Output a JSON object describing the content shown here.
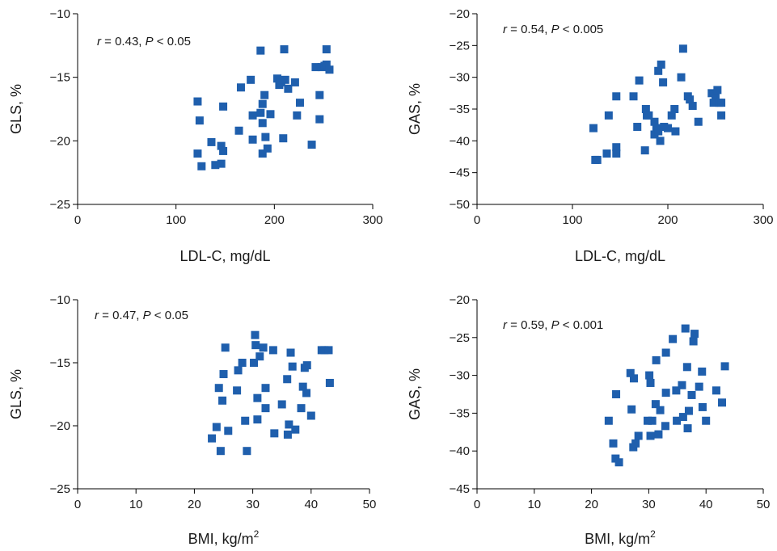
{
  "colors": {
    "marker": "#1f5fad",
    "axis": "#000000"
  },
  "chart_data": [
    {
      "type": "scatter",
      "xlabel": "LDL-C, mg/dL",
      "ylabel": "GLS, %",
      "annotation": {
        "r_symbol": "r",
        "r_text": " = 0.43, ",
        "p_symbol": "P",
        "p_text": " < 0.05"
      },
      "xlim": [
        0,
        300
      ],
      "ylim": [
        -25,
        -10
      ],
      "xticks": [
        0,
        100,
        200,
        300
      ],
      "yticks": [
        -25,
        -20,
        -15,
        -10
      ],
      "xtick_labels": [
        "0",
        "100",
        "200",
        "300"
      ],
      "ytick_labels": [
        "−25",
        "−20",
        "−15",
        "−10"
      ],
      "points": [
        [
          122,
          -16.9
        ],
        [
          124,
          -18.4
        ],
        [
          122,
          -21.0
        ],
        [
          126,
          -22.0
        ],
        [
          136,
          -20.1
        ],
        [
          140,
          -21.9
        ],
        [
          146,
          -21.8
        ],
        [
          146,
          -20.4
        ],
        [
          148,
          -20.8
        ],
        [
          148,
          -17.3
        ],
        [
          164,
          -19.2
        ],
        [
          166,
          -15.8
        ],
        [
          176,
          -15.2
        ],
        [
          178,
          -18.0
        ],
        [
          178,
          -19.9
        ],
        [
          186,
          -12.9
        ],
        [
          186,
          -17.8
        ],
        [
          188,
          -18.6
        ],
        [
          188,
          -21.0
        ],
        [
          188,
          -17.1
        ],
        [
          190,
          -16.4
        ],
        [
          191,
          -19.7
        ],
        [
          193,
          -20.6
        ],
        [
          196,
          -17.9
        ],
        [
          203,
          -15.1
        ],
        [
          205,
          -15.6
        ],
        [
          207,
          -15.4
        ],
        [
          209,
          -19.8
        ],
        [
          210,
          -12.8
        ],
        [
          211,
          -15.2
        ],
        [
          214,
          -15.9
        ],
        [
          221,
          -15.4
        ],
        [
          223,
          -18.0
        ],
        [
          226,
          -17.0
        ],
        [
          238,
          -20.3
        ],
        [
          242,
          -14.2
        ],
        [
          246,
          -16.4
        ],
        [
          246,
          -18.3
        ],
        [
          248,
          -14.2
        ],
        [
          251,
          -14.1
        ],
        [
          253,
          -12.8
        ],
        [
          253,
          -14.0
        ],
        [
          256,
          -14.4
        ]
      ]
    },
    {
      "type": "scatter",
      "xlabel": "LDL-C, mg/dL",
      "ylabel": "GAS, %",
      "annotation": {
        "r_symbol": "r",
        "r_text": " = 0.54, ",
        "p_symbol": "P",
        "p_text": " < 0.005"
      },
      "xlim": [
        0,
        300
      ],
      "ylim": [
        -50,
        -20
      ],
      "xticks": [
        0,
        100,
        200,
        300
      ],
      "yticks": [
        -50,
        -45,
        -40,
        -35,
        -30,
        -25,
        -20
      ],
      "xtick_labels": [
        "0",
        "100",
        "200",
        "300"
      ],
      "ytick_labels": [
        "−50",
        "−45",
        "−40",
        "−35",
        "−30",
        "−25",
        "−20"
      ],
      "points": [
        [
          122,
          -38.0
        ],
        [
          124,
          -43.0
        ],
        [
          126,
          -43.0
        ],
        [
          136,
          -42.0
        ],
        [
          138,
          -36.0
        ],
        [
          146,
          -33.0
        ],
        [
          146,
          -41.0
        ],
        [
          146,
          -42.0
        ],
        [
          164,
          -33.0
        ],
        [
          168,
          -37.8
        ],
        [
          170,
          -30.5
        ],
        [
          176,
          -41.5
        ],
        [
          177,
          -35.0
        ],
        [
          178,
          -36.0
        ],
        [
          180,
          -36.0
        ],
        [
          186,
          -39.0
        ],
        [
          186,
          -37.0
        ],
        [
          188,
          -38.0
        ],
        [
          190,
          -38.5
        ],
        [
          190,
          -29.0
        ],
        [
          192,
          -40.0
        ],
        [
          193,
          -28.0
        ],
        [
          195,
          -30.8
        ],
        [
          196,
          -37.8
        ],
        [
          200,
          -38.0
        ],
        [
          204,
          -36.0
        ],
        [
          207,
          -35.0
        ],
        [
          208,
          -38.5
        ],
        [
          214,
          -30.0
        ],
        [
          216,
          -25.5
        ],
        [
          221,
          -33.0
        ],
        [
          223,
          -33.5
        ],
        [
          226,
          -34.5
        ],
        [
          232,
          -37.0
        ],
        [
          246,
          -32.5
        ],
        [
          248,
          -34.0
        ],
        [
          250,
          -33.0
        ],
        [
          252,
          -32.0
        ],
        [
          254,
          -34.0
        ],
        [
          256,
          -34.0
        ],
        [
          256,
          -36.0
        ]
      ]
    },
    {
      "type": "scatter",
      "xlabel": "BMI, kg/m",
      "xlabel_sup": "2",
      "ylabel": "GLS, %",
      "annotation": {
        "r_symbol": "r",
        "r_text": " = 0.47, ",
        "p_symbol": "P",
        "p_text": " < 0.05"
      },
      "xlim": [
        0,
        50
      ],
      "ylim": [
        -25,
        -10
      ],
      "xticks": [
        0,
        10,
        20,
        30,
        40,
        50
      ],
      "yticks": [
        -25,
        -20,
        -15,
        -10
      ],
      "xtick_labels": [
        "0",
        "10",
        "20",
        "30",
        "40",
        "50"
      ],
      "ytick_labels": [
        "−25",
        "−20",
        "−15",
        "−10"
      ],
      "points": [
        [
          23.0,
          -21.0
        ],
        [
          23.8,
          -20.1
        ],
        [
          24.2,
          -17.0
        ],
        [
          24.5,
          -22.0
        ],
        [
          24.8,
          -18.0
        ],
        [
          25.0,
          -15.9
        ],
        [
          25.3,
          -13.8
        ],
        [
          25.8,
          -20.4
        ],
        [
          27.3,
          -17.2
        ],
        [
          27.5,
          -15.6
        ],
        [
          28.2,
          -15.0
        ],
        [
          28.7,
          -19.6
        ],
        [
          29.0,
          -22.0
        ],
        [
          30.2,
          -15.0
        ],
        [
          30.4,
          -12.8
        ],
        [
          30.5,
          -13.6
        ],
        [
          30.8,
          -19.5
        ],
        [
          30.8,
          -17.8
        ],
        [
          31.2,
          -14.5
        ],
        [
          31.8,
          -13.8
        ],
        [
          32.2,
          -18.6
        ],
        [
          32.2,
          -17.0
        ],
        [
          33.5,
          -14.0
        ],
        [
          33.7,
          -20.6
        ],
        [
          35.0,
          -18.3
        ],
        [
          35.9,
          -16.3
        ],
        [
          36.0,
          -20.7
        ],
        [
          36.2,
          -19.9
        ],
        [
          36.5,
          -14.2
        ],
        [
          36.8,
          -15.3
        ],
        [
          37.3,
          -20.3
        ],
        [
          38.3,
          -18.6
        ],
        [
          38.6,
          -16.9
        ],
        [
          38.9,
          -15.4
        ],
        [
          39.2,
          -17.4
        ],
        [
          39.3,
          -15.2
        ],
        [
          40.0,
          -19.2
        ],
        [
          41.8,
          -14.0
        ],
        [
          42.3,
          -14.0
        ],
        [
          43.0,
          -14.0
        ],
        [
          43.2,
          -16.6
        ]
      ]
    },
    {
      "type": "scatter",
      "xlabel": "BMI, kg/m",
      "xlabel_sup": "2",
      "ylabel": "GAS, %",
      "annotation": {
        "r_symbol": "r",
        "r_text": " = 0.59, ",
        "p_symbol": "P",
        "p_text": " < 0.001"
      },
      "xlim": [
        0,
        50
      ],
      "ylim": [
        -45,
        -20
      ],
      "xticks": [
        0,
        10,
        20,
        30,
        40,
        50
      ],
      "yticks": [
        -45,
        -40,
        -35,
        -30,
        -25,
        -20
      ],
      "xtick_labels": [
        "0",
        "10",
        "20",
        "30",
        "40",
        "50"
      ],
      "ytick_labels": [
        "−45",
        "−40",
        "−35",
        "−30",
        "−25",
        "−20"
      ],
      "points": [
        [
          23.0,
          -36.0
        ],
        [
          23.8,
          -39.0
        ],
        [
          24.2,
          -41.0
        ],
        [
          24.3,
          -32.5
        ],
        [
          24.8,
          -41.5
        ],
        [
          26.8,
          -29.7
        ],
        [
          27.0,
          -34.5
        ],
        [
          27.3,
          -39.5
        ],
        [
          27.4,
          -30.4
        ],
        [
          27.7,
          -39.0
        ],
        [
          28.2,
          -38.0
        ],
        [
          29.8,
          -36.0
        ],
        [
          30.1,
          -30.0
        ],
        [
          30.3,
          -31.0
        ],
        [
          30.3,
          -38.0
        ],
        [
          30.6,
          -36.0
        ],
        [
          31.2,
          -33.8
        ],
        [
          31.3,
          -28.0
        ],
        [
          31.7,
          -37.8
        ],
        [
          32.0,
          -34.6
        ],
        [
          32.9,
          -36.7
        ],
        [
          33.0,
          -27.0
        ],
        [
          33.0,
          -32.3
        ],
        [
          34.2,
          -25.2
        ],
        [
          34.8,
          -32.0
        ],
        [
          34.9,
          -36.0
        ],
        [
          35.8,
          -31.3
        ],
        [
          36.0,
          -35.5
        ],
        [
          36.4,
          -23.8
        ],
        [
          36.7,
          -28.9
        ],
        [
          36.8,
          -37.0
        ],
        [
          37.0,
          -34.7
        ],
        [
          37.5,
          -32.6
        ],
        [
          37.8,
          -25.5
        ],
        [
          38.0,
          -24.5
        ],
        [
          38.8,
          -31.5
        ],
        [
          39.3,
          -29.5
        ],
        [
          39.4,
          -34.2
        ],
        [
          40.0,
          -36.0
        ],
        [
          41.8,
          -32.0
        ],
        [
          42.8,
          -33.6
        ],
        [
          43.3,
          -28.8
        ]
      ]
    }
  ]
}
